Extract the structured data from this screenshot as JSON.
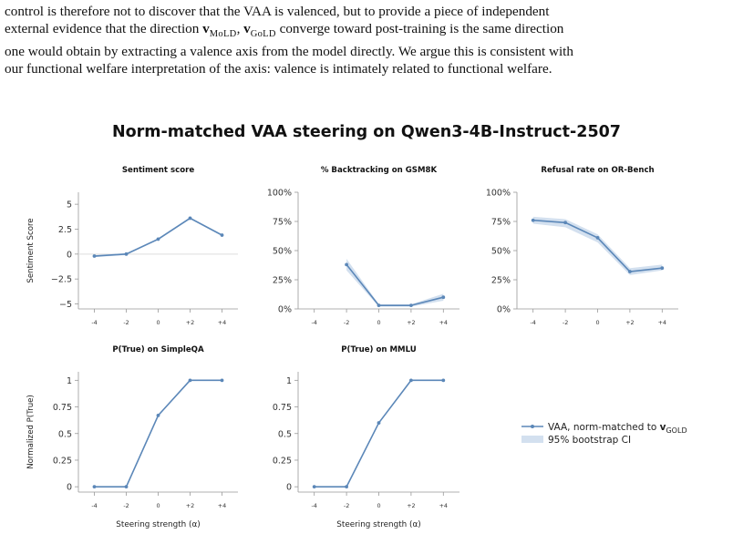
{
  "paragraph": {
    "line1": "control is therefore not to discover that the VAA is valenced, but to provide a piece of independent",
    "line2_pre": "external evidence that the direction ",
    "v": "v",
    "sub_mold": "MoLD",
    "comma": ", ",
    "sub_gold": "GoLD",
    "line2_post": " converge toward post-training is the same direction",
    "line3": "one would obtain by extracting a valence axis from the model directly. We argue this is consistent with",
    "line4": "our functional welfare interpretation of the axis: valence is intimately related to functional welfare."
  },
  "figure": {
    "title": "Norm-matched VAA steering on Qwen3-4B-Instruct-2507",
    "legend": {
      "line_label": "VAA, norm-matched to ",
      "line_label_v": "v",
      "line_label_sub": "GOLD",
      "band_label": "95% bootstrap CI"
    }
  },
  "chart_data": [
    {
      "type": "line",
      "title": "Sentiment score",
      "ylabel": "Sentiment Score",
      "xlabel": "",
      "categories": [
        "-4",
        "-2",
        "0",
        "+2",
        "+4"
      ],
      "series": [
        {
          "values": [
            -0.2,
            0.0,
            1.5,
            3.6,
            1.9
          ],
          "ci_low": [
            -0.3,
            -0.1,
            1.4,
            3.5,
            1.8
          ],
          "ci_high": [
            -0.1,
            0.1,
            1.6,
            3.7,
            2.0
          ]
        }
      ],
      "ylim": [
        -5.5,
        6.2
      ],
      "yticks": [
        5,
        2.5,
        0,
        -2.5,
        -5
      ],
      "ytick_labels": [
        "5",
        "2.5",
        "0",
        "−2.5",
        "−5"
      ],
      "zero_line": true
    },
    {
      "type": "line",
      "title": "% Backtracking on GSM8K",
      "ylabel": "",
      "xlabel": "",
      "categories": [
        "-4",
        "-2",
        "0",
        "+2",
        "+4"
      ],
      "series": [
        {
          "values": [
            null,
            38,
            3,
            3,
            10
          ],
          "ci_low": [
            null,
            33,
            2,
            2,
            7
          ],
          "ci_high": [
            null,
            43,
            4,
            4,
            13
          ]
        }
      ],
      "ylim": [
        0,
        100
      ],
      "yticks": [
        100,
        75,
        50,
        25,
        0
      ],
      "ytick_labels": [
        "100%",
        "75%",
        "50%",
        "25%",
        "0%"
      ],
      "zero_line": false
    },
    {
      "type": "line",
      "title": "Refusal rate on OR-Bench",
      "ylabel": "",
      "xlabel": "",
      "categories": [
        "-4",
        "-2",
        "0",
        "+2",
        "+4"
      ],
      "series": [
        {
          "values": [
            76,
            74,
            61,
            32,
            35
          ],
          "ci_low": [
            73,
            70,
            57,
            29,
            33
          ],
          "ci_high": [
            79,
            77,
            64,
            35,
            38
          ]
        }
      ],
      "ylim": [
        0,
        100
      ],
      "yticks": [
        100,
        75,
        50,
        25,
        0
      ],
      "ytick_labels": [
        "100%",
        "75%",
        "50%",
        "25%",
        "0%"
      ],
      "zero_line": false
    },
    {
      "type": "line",
      "title": "P(True) on SimpleQA",
      "ylabel": "Normalized P(True)",
      "xlabel": "Steering strength (α)",
      "categories": [
        "-4",
        "-2",
        "0",
        "+2",
        "+4"
      ],
      "series": [
        {
          "values": [
            0,
            0,
            0.67,
            1,
            1
          ],
          "ci_low": [
            0,
            0,
            0.66,
            1,
            1
          ],
          "ci_high": [
            0,
            0,
            0.68,
            1,
            1
          ]
        }
      ],
      "ylim": [
        -0.05,
        1.08
      ],
      "yticks": [
        1,
        0.75,
        0.5,
        0.25,
        0
      ],
      "ytick_labels": [
        "1",
        "0.75",
        "0.5",
        "0.25",
        "0"
      ],
      "zero_line": false
    },
    {
      "type": "line",
      "title": "P(True) on MMLU",
      "ylabel": "",
      "xlabel": "Steering strength (α)",
      "categories": [
        "-4",
        "-2",
        "0",
        "+2",
        "+4"
      ],
      "series": [
        {
          "values": [
            0,
            0,
            0.6,
            1,
            1
          ],
          "ci_low": [
            0,
            0,
            0.59,
            1,
            1
          ],
          "ci_high": [
            0,
            0,
            0.61,
            1,
            1
          ]
        }
      ],
      "ylim": [
        -0.05,
        1.08
      ],
      "yticks": [
        1,
        0.75,
        0.5,
        0.25,
        0
      ],
      "ytick_labels": [
        "1",
        "0.75",
        "0.5",
        "0.25",
        "0"
      ],
      "zero_line": false
    }
  ],
  "colors": {
    "line": "#5b87b8",
    "band": "#d3e0ef",
    "axis": "#999999",
    "zero": "#dddddd"
  }
}
